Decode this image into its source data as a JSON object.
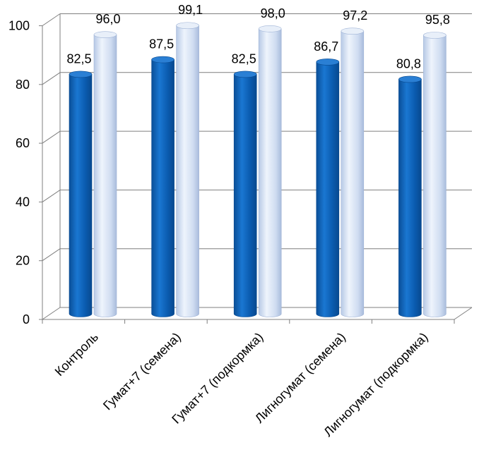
{
  "chart_data": {
    "type": "bar",
    "title": "",
    "xlabel": "",
    "ylabel": "",
    "ylim": [
      0,
      100
    ],
    "yticks": [
      0,
      20,
      40,
      60,
      80,
      100
    ],
    "ytick_labels": [
      "0",
      "20",
      "40",
      "60",
      "80",
      "100"
    ],
    "grid": true,
    "legend": "none",
    "categories": [
      "Контроль",
      "Гумат+7 (семена)",
      "Гумат+7 (подкормка)",
      "Лигногумат (семена)",
      "Лигногумат (подкормка)"
    ],
    "series": [
      {
        "color": "#0a5fb4",
        "values": [
          82.5,
          87.5,
          82.5,
          86.7,
          80.8
        ],
        "labels": [
          "82,5",
          "87,5",
          "82,5",
          "86,7",
          "80,8"
        ]
      },
      {
        "color": "#c9daf2",
        "values": [
          96.0,
          99.1,
          98.0,
          97.2,
          95.8
        ],
        "labels": [
          "96,0",
          "99,1",
          "98,0",
          "97,2",
          "95,8"
        ]
      }
    ]
  }
}
